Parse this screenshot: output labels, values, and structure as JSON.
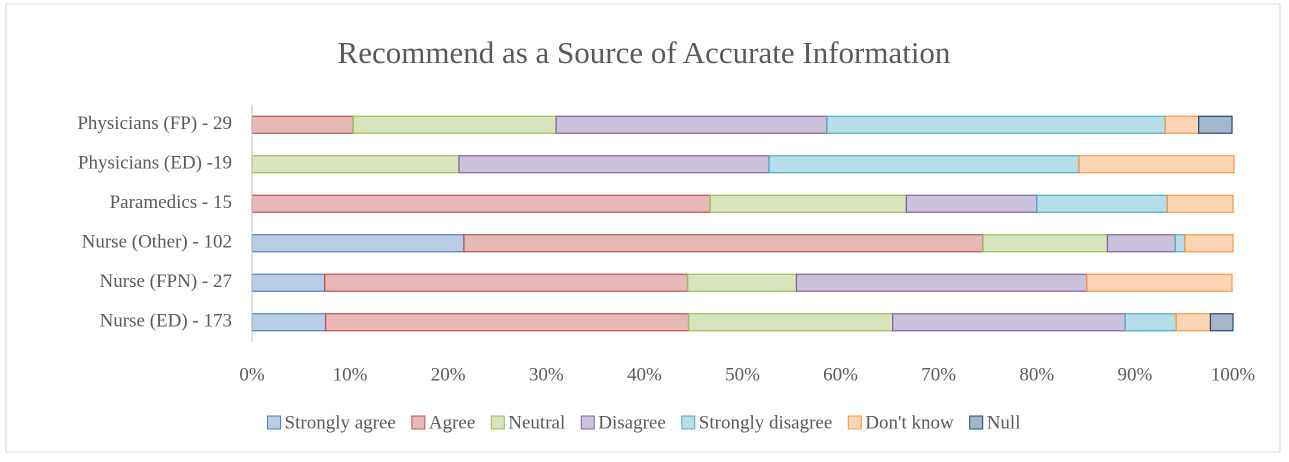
{
  "chart_data": {
    "type": "stacked_bar_horizontal",
    "title": "Recommend as a Source of Accurate Information",
    "categories": [
      "Physicians (FP) - 29",
      "Physicians (ED) -19",
      "Paramedics - 15",
      "Nurse (Other) - 102",
      "Nurse (FPN) - 27",
      "Nurse (ED) - 173"
    ],
    "series": [
      {
        "name": "Strongly agree",
        "color": "#4f81bd",
        "values": [
          0,
          0,
          0,
          21.6,
          7.4,
          7.5
        ]
      },
      {
        "name": "Agree",
        "color": "#c0504d",
        "values": [
          10.3,
          0,
          46.7,
          52.9,
          37.0,
          37.0
        ]
      },
      {
        "name": "Neutral",
        "color": "#9bbb59",
        "values": [
          20.7,
          21.1,
          20.0,
          12.7,
          11.1,
          20.8
        ]
      },
      {
        "name": "Disagree",
        "color": "#8064a2",
        "values": [
          27.6,
          31.6,
          13.3,
          6.9,
          29.6,
          23.7
        ]
      },
      {
        "name": "Strongly disagree",
        "color": "#4bacc6",
        "values": [
          34.5,
          31.6,
          13.3,
          1.0,
          0,
          5.2
        ]
      },
      {
        "name": "Don't know",
        "color": "#f79646",
        "values": [
          3.4,
          15.8,
          6.7,
          4.9,
          14.8,
          3.5
        ]
      },
      {
        "name": "Null",
        "color": "#1f497d",
        "values": [
          3.4,
          0,
          0,
          0,
          0,
          2.3
        ]
      }
    ],
    "xlim": [
      0,
      100
    ],
    "xticks": [
      {
        "value": 0,
        "label": "0%"
      },
      {
        "value": 10,
        "label": "10%"
      },
      {
        "value": 20,
        "label": "20%"
      },
      {
        "value": 30,
        "label": "30%"
      },
      {
        "value": 40,
        "label": "40%"
      },
      {
        "value": 50,
        "label": "50%"
      },
      {
        "value": 60,
        "label": "60%"
      },
      {
        "value": 70,
        "label": "70%"
      },
      {
        "value": 80,
        "label": "80%"
      },
      {
        "value": 90,
        "label": "90%"
      },
      {
        "value": 100,
        "label": "100%"
      }
    ],
    "legend": "bottom"
  }
}
